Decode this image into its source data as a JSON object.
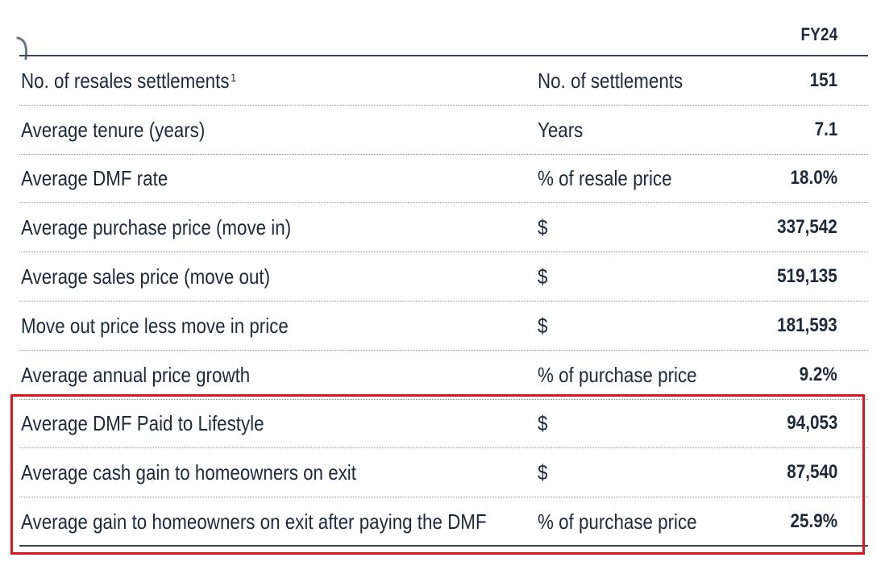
{
  "header": {
    "column_label": "FY24"
  },
  "rows": [
    {
      "metric": "No. of resales settlements",
      "footnote": "1",
      "unit": "No. of settlements",
      "value": "151"
    },
    {
      "metric": "Average tenure (years)",
      "unit": "Years",
      "value": "7.1"
    },
    {
      "metric": "Average DMF rate",
      "unit": "% of resale price",
      "value": "18.0%"
    },
    {
      "metric": "Average purchase price (move in)",
      "unit": "$",
      "value": "337,542"
    },
    {
      "metric": "Average sales price (move out)",
      "unit": "$",
      "value": "519,135"
    },
    {
      "metric": "Move out price less move in price",
      "unit": "$",
      "value": "181,593"
    },
    {
      "metric": "Average annual price growth",
      "unit": "% of purchase price",
      "value": "9.2%"
    },
    {
      "metric": "Average DMF Paid to Lifestyle",
      "unit": "$",
      "value": "94,053"
    },
    {
      "metric": "Average cash gain to homeowners on exit",
      "unit": "$",
      "value": "87,540"
    },
    {
      "metric": "Average gain to homeowners on exit after paying the DMF",
      "unit": "% of purchase price",
      "value": "25.9%"
    }
  ],
  "colors": {
    "text": "#1e2a38",
    "rule": "#3a4654",
    "highlight": "#e0141c"
  }
}
